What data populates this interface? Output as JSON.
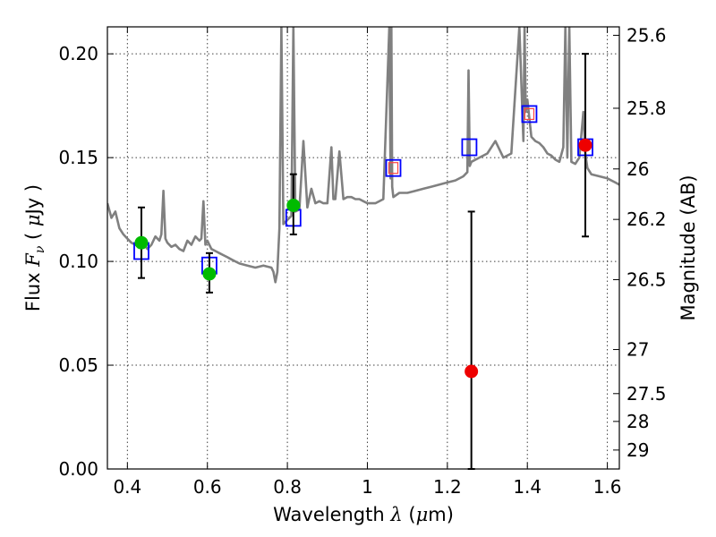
{
  "chart_data": {
    "type": "scatter",
    "xlabel_text": "Wavelength",
    "xlabel_symbol": "λ",
    "xlabel_unit_open": "(",
    "xlabel_unit_mu": "μ",
    "xlabel_unit_rest": "m)",
    "ylabel_text": "Flux",
    "ylabel_symbol": "F",
    "ylabel_subscript": "ν",
    "ylabel_unit_open": "(",
    "ylabel_unit_mu": "μ",
    "ylabel_unit_rest": "Jy",
    "ylabel_unit_close": ")",
    "y2label": "Magnitude (AB)",
    "xlim": [
      0.35,
      1.63
    ],
    "ylim": [
      0.0,
      0.213
    ],
    "xticks": [
      0.4,
      0.6,
      0.8,
      1.0,
      1.2,
      1.4,
      1.6
    ],
    "xtick_labels": [
      "0.4",
      "0.6",
      "0.8",
      "1",
      "1.2",
      "1.4",
      "1.6"
    ],
    "yticks": [
      0.0,
      0.05,
      0.1,
      0.15,
      0.2
    ],
    "ytick_labels": [
      "0.00",
      "0.05",
      "0.10",
      "0.15",
      "0.20"
    ],
    "y2ticks": [
      {
        "label": "25.6",
        "mag": 25.6
      },
      {
        "label": "25.8",
        "mag": 25.8
      },
      {
        "label": "26",
        "mag": 26.0
      },
      {
        "label": "26.2",
        "mag": 26.2
      },
      {
        "label": "26.5",
        "mag": 26.5
      },
      {
        "label": "27",
        "mag": 27.0
      },
      {
        "label": "27.5",
        "mag": 27.5
      },
      {
        "label": "28",
        "mag": 28.0
      },
      {
        "label": "29",
        "mag": 29.0
      }
    ],
    "grid": true,
    "colors": {
      "spectrum": "#808080",
      "model": "#0000ff",
      "model_inner": "#ff4444",
      "green": "#00bb00",
      "red": "#ee0000",
      "error": "#000000"
    },
    "series": [
      {
        "name": "model_spectrum",
        "kind": "line",
        "x": [
          0.35,
          0.36,
          0.37,
          0.38,
          0.39,
          0.4,
          0.41,
          0.42,
          0.43,
          0.44,
          0.45,
          0.46,
          0.47,
          0.48,
          0.485,
          0.49,
          0.495,
          0.5,
          0.51,
          0.52,
          0.53,
          0.54,
          0.55,
          0.56,
          0.57,
          0.58,
          0.585,
          0.59,
          0.595,
          0.6,
          0.61,
          0.62,
          0.63,
          0.64,
          0.65,
          0.66,
          0.67,
          0.68,
          0.7,
          0.72,
          0.74,
          0.76,
          0.765,
          0.77,
          0.775,
          0.78,
          0.785,
          0.79,
          0.8,
          0.81,
          0.815,
          0.82,
          0.83,
          0.84,
          0.85,
          0.86,
          0.87,
          0.88,
          0.89,
          0.9,
          0.91,
          0.915,
          0.92,
          0.93,
          0.94,
          0.95,
          0.96,
          0.97,
          0.98,
          0.99,
          1.0,
          1.02,
          1.04,
          1.055,
          1.058,
          1.06,
          1.062,
          1.065,
          1.08,
          1.1,
          1.12,
          1.14,
          1.16,
          1.18,
          1.2,
          1.22,
          1.24,
          1.25,
          1.253,
          1.256,
          1.26,
          1.28,
          1.3,
          1.32,
          1.34,
          1.36,
          1.38,
          1.39,
          1.393,
          1.396,
          1.4,
          1.41,
          1.42,
          1.43,
          1.44,
          1.45,
          1.46,
          1.47,
          1.48,
          1.49,
          1.495,
          1.5,
          1.505,
          1.51,
          1.52,
          1.53,
          1.54,
          1.545,
          1.55,
          1.56,
          1.58,
          1.6,
          1.62,
          1.63
        ],
        "y": [
          0.128,
          0.121,
          0.124,
          0.116,
          0.113,
          0.111,
          0.109,
          0.108,
          0.11,
          0.109,
          0.106,
          0.108,
          0.112,
          0.11,
          0.113,
          0.134,
          0.111,
          0.109,
          0.107,
          0.108,
          0.106,
          0.105,
          0.11,
          0.108,
          0.112,
          0.11,
          0.111,
          0.129,
          0.108,
          0.11,
          0.106,
          0.105,
          0.104,
          0.103,
          0.102,
          0.101,
          0.1,
          0.099,
          0.098,
          0.097,
          0.098,
          0.097,
          0.095,
          0.09,
          0.095,
          0.116,
          0.213,
          0.118,
          0.12,
          0.122,
          0.213,
          0.124,
          0.125,
          0.158,
          0.126,
          0.135,
          0.128,
          0.129,
          0.128,
          0.128,
          0.155,
          0.13,
          0.13,
          0.153,
          0.13,
          0.131,
          0.131,
          0.13,
          0.13,
          0.129,
          0.128,
          0.128,
          0.13,
          0.213,
          0.14,
          0.213,
          0.136,
          0.131,
          0.133,
          0.133,
          0.134,
          0.135,
          0.136,
          0.137,
          0.138,
          0.139,
          0.141,
          0.143,
          0.192,
          0.146,
          0.148,
          0.15,
          0.152,
          0.158,
          0.15,
          0.152,
          0.213,
          0.158,
          0.213,
          0.172,
          0.178,
          0.16,
          0.158,
          0.157,
          0.155,
          0.152,
          0.151,
          0.149,
          0.148,
          0.155,
          0.213,
          0.15,
          0.213,
          0.148,
          0.147,
          0.15,
          0.172,
          0.152,
          0.145,
          0.142,
          0.141,
          0.14,
          0.138,
          0.137
        ]
      },
      {
        "name": "model_photometry",
        "kind": "open_square",
        "x": [
          0.435,
          0.605,
          0.815,
          1.065,
          1.255,
          1.405,
          1.545
        ],
        "y": [
          0.105,
          0.098,
          0.121,
          0.145,
          0.155,
          0.171,
          0.155
        ]
      },
      {
        "name": "model_photometry_inner",
        "kind": "small_open_square",
        "x": [
          1.065,
          1.405
        ],
        "y": [
          0.145,
          0.171
        ]
      },
      {
        "name": "observed_green",
        "kind": "filled_circle",
        "x": [
          0.435,
          0.605,
          0.815
        ],
        "y": [
          0.109,
          0.094,
          0.127
        ],
        "yerr_low": [
          0.092,
          0.085,
          0.113
        ],
        "yerr_high": [
          0.126,
          0.104,
          0.142
        ]
      },
      {
        "name": "observed_red",
        "kind": "filled_circle",
        "x": [
          1.26,
          1.545
        ],
        "y": [
          0.047,
          0.156
        ],
        "yerr_low": [
          0.0,
          0.112
        ],
        "yerr_high": [
          0.124,
          0.2
        ]
      }
    ]
  }
}
